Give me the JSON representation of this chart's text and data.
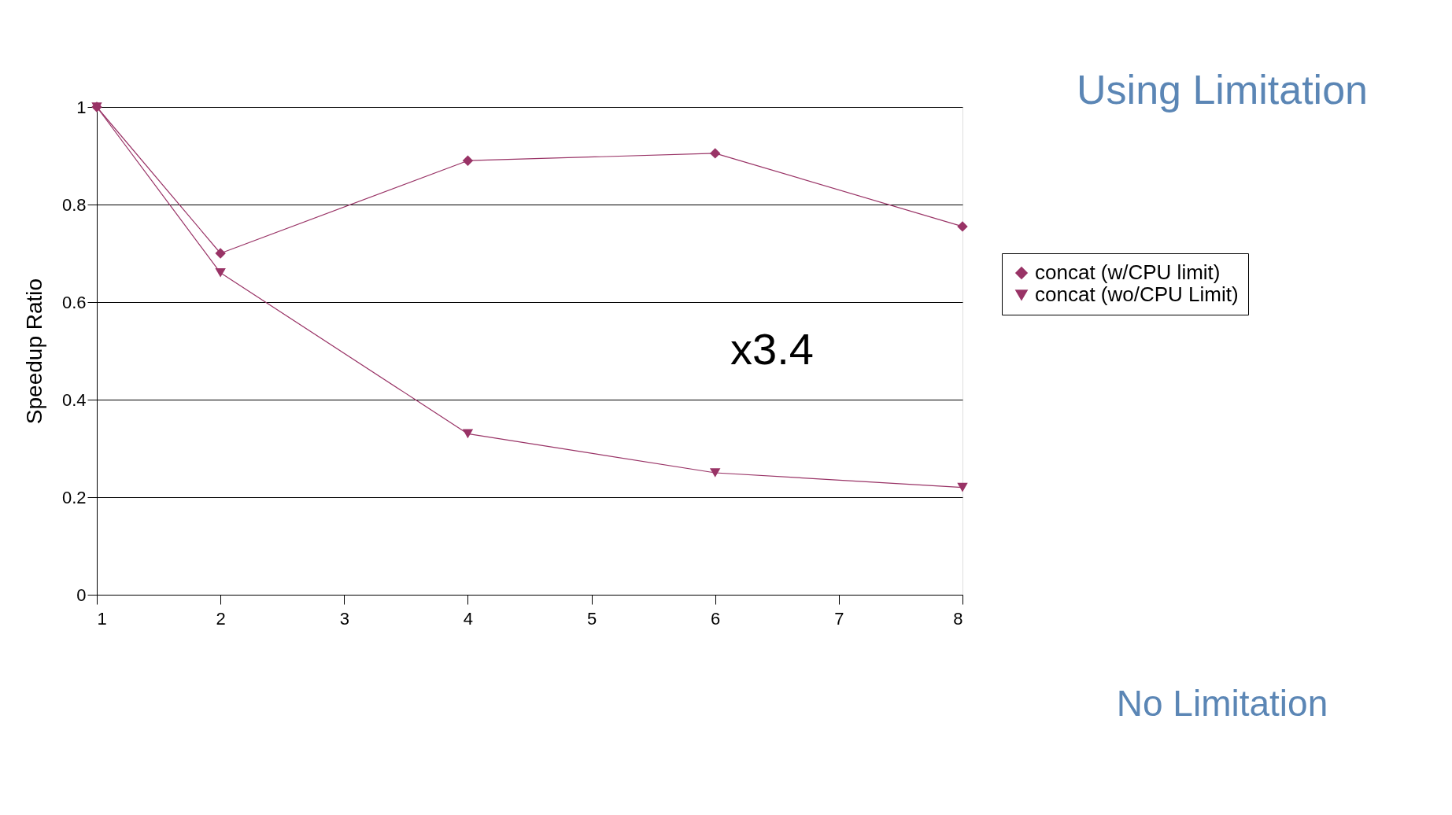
{
  "chart_data": {
    "type": "line",
    "ylabel": "Speedup Ratio",
    "x": [
      1,
      2,
      4,
      6,
      8
    ],
    "series": [
      {
        "name": "concat (w/CPU limit)",
        "color": "#993366",
        "marker": "diamond",
        "values": [
          1,
          0.7,
          0.89,
          0.905,
          0.755
        ]
      },
      {
        "name": "concat (wo/CPU Limit)",
        "color": "#993366",
        "marker": "triangle",
        "values": [
          1,
          0.66,
          0.33,
          0.25,
          0.22
        ]
      }
    ],
    "xlim": [
      1,
      8
    ],
    "xticks": [
      1,
      2,
      3,
      4,
      5,
      6,
      7,
      8
    ],
    "ylim": [
      0,
      1
    ],
    "yticks": [
      0,
      0.2,
      0.4,
      0.6,
      0.8,
      1
    ],
    "grid": "y",
    "legend": "right",
    "line_style": "solid",
    "annotations": [
      "Using Limitation",
      "No Limitation",
      "x3.4"
    ]
  }
}
